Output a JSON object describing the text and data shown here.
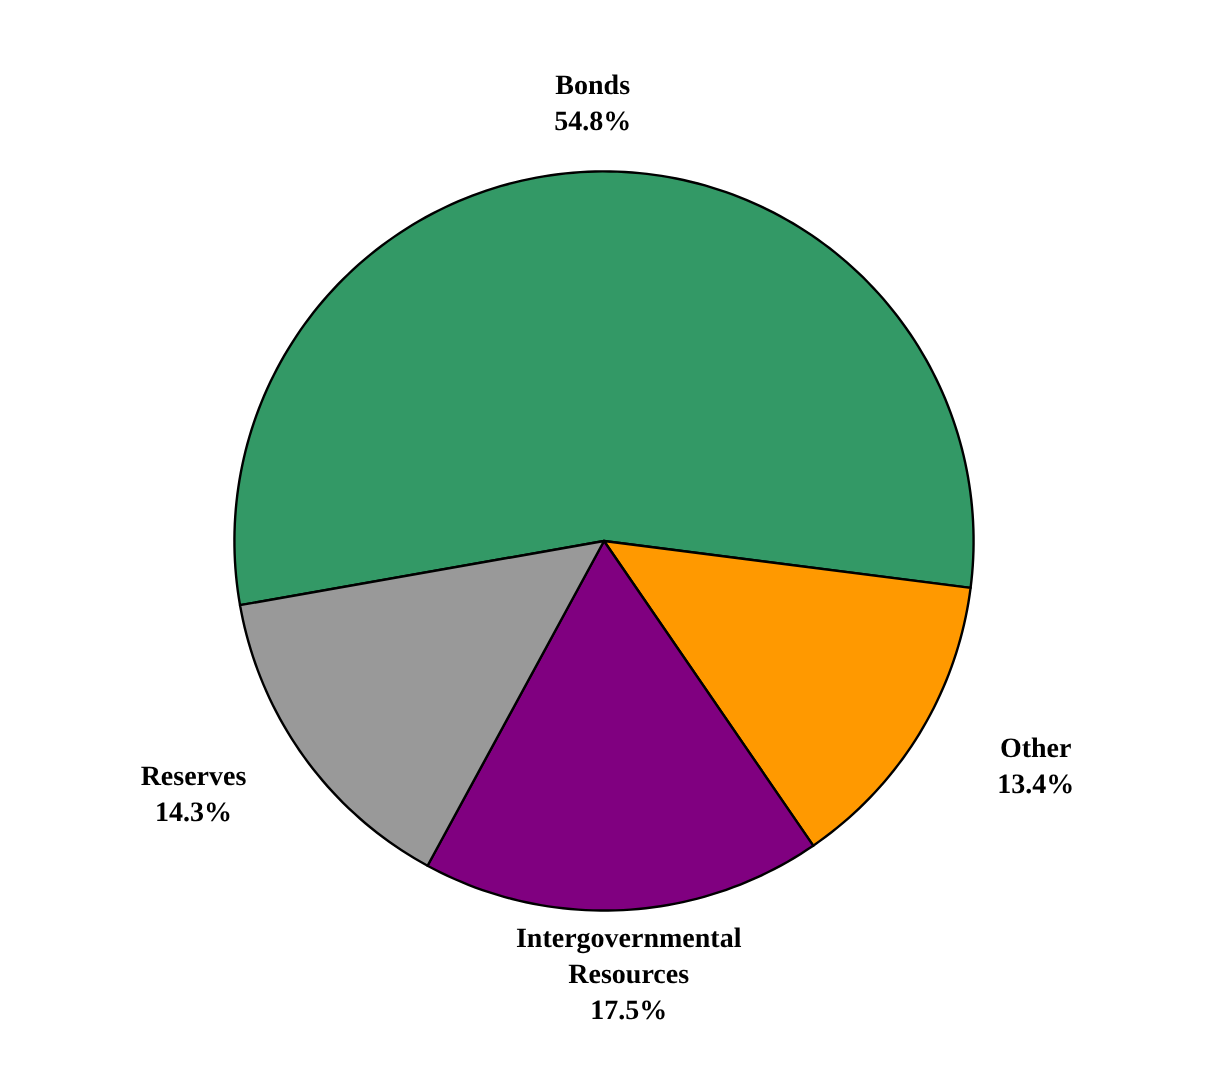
{
  "chart_data": {
    "type": "pie",
    "categories": [
      "Bonds",
      "Other",
      "Intergovernmental Resources",
      "Reserves"
    ],
    "values": [
      54.8,
      13.4,
      17.5,
      14.3
    ],
    "colors": [
      "#339966",
      "#ff9900",
      "#800080",
      "#999999"
    ],
    "value_labels": [
      "54.8%",
      "13.4%",
      "17.5%",
      "14.3%"
    ],
    "legend": false
  }
}
